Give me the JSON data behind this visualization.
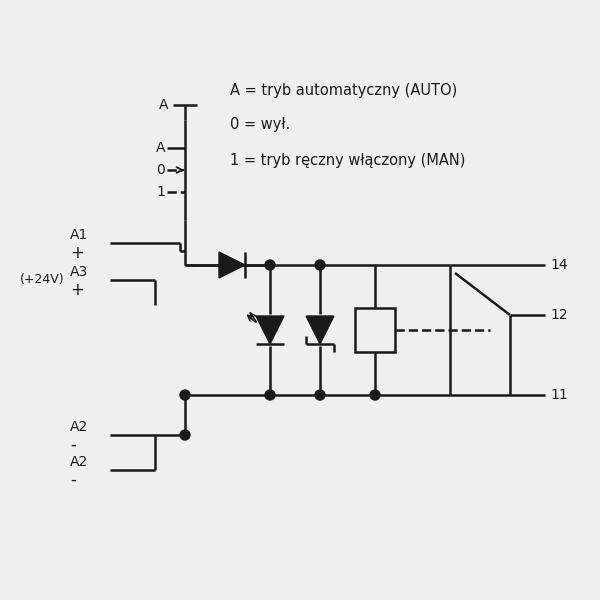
{
  "bg_color": "#f0f0f0",
  "line_color": "#1a1a1a",
  "lw": 1.8,
  "legend": [
    "A = tryb automatyczny (AUTO)",
    "0 = wył.",
    "1 = tryb ręczny włączony (MAN)"
  ],
  "fs_main": 10.5,
  "fs_label": 10,
  "fs_small": 9
}
